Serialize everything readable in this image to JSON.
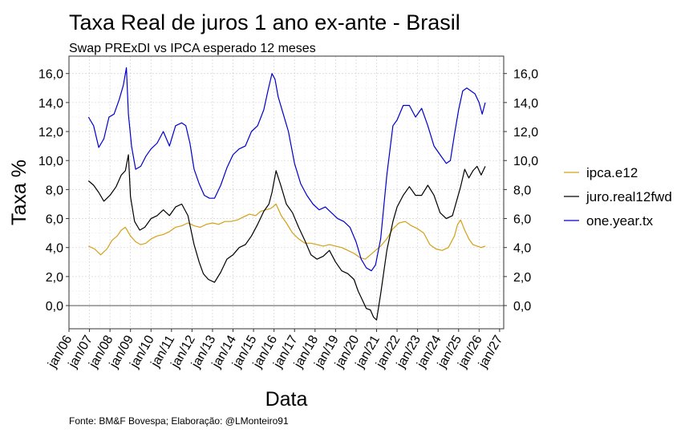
{
  "chart_data": {
    "type": "line",
    "title": "Taxa Real de juros 1 ano ex-ante - Brasil",
    "subtitle": "Swap PRExDI vs IPCA esperado 12 meses",
    "xlabel": "Data",
    "ylabel": "Taxa %",
    "caption": "Fonte: BM&F Bovespa; Elaboração: @LMonteiro91",
    "ylim": [
      -1.6,
      17.2
    ],
    "xlim": [
      2006.0,
      2027.2
    ],
    "y_ticks": [
      0,
      2,
      4,
      6,
      8,
      10,
      12,
      14,
      16
    ],
    "y_tick_labels": [
      "0,0",
      "2,0",
      "4,0",
      "6,0",
      "8,0",
      "10,0",
      "12,0",
      "14,0",
      "16,0"
    ],
    "x_ticks": [
      2006,
      2007,
      2008,
      2009,
      2010,
      2011,
      2012,
      2013,
      2014,
      2015,
      2016,
      2017,
      2018,
      2019,
      2020,
      2021,
      2022,
      2023,
      2024,
      2025,
      2026,
      2027
    ],
    "x_tick_labels": [
      "jan/06",
      "jan/07",
      "jan/08",
      "jan/09",
      "jan/10",
      "jan/11",
      "jan/12",
      "jan/13",
      "jan/14",
      "jan/15",
      "jan/16",
      "jan/17",
      "jan/18",
      "jan/19",
      "jan/20",
      "jan/21",
      "jan/22",
      "jan/23",
      "jan/24",
      "jan/25",
      "jan/26",
      "jan/27"
    ],
    "grid": true,
    "secondary_y_axis": true,
    "legend_position": "right",
    "series": [
      {
        "name": "ipca.e12",
        "color": "#D4A017",
        "x": [
          2006.95,
          2007.25,
          2007.55,
          2007.85,
          2008.1,
          2008.35,
          2008.55,
          2008.75,
          2009.0,
          2009.25,
          2009.5,
          2009.75,
          2010.0,
          2010.3,
          2010.6,
          2010.9,
          2011.2,
          2011.5,
          2011.8,
          2012.1,
          2012.4,
          2012.7,
          2013.0,
          2013.3,
          2013.6,
          2013.9,
          2014.2,
          2014.5,
          2014.8,
          2015.1,
          2015.35,
          2015.6,
          2015.85,
          2016.1,
          2016.35,
          2016.6,
          2016.9,
          2017.2,
          2017.5,
          2017.8,
          2018.1,
          2018.4,
          2018.7,
          2019.0,
          2019.3,
          2019.6,
          2019.9,
          2020.2,
          2020.45,
          2020.7,
          2020.95,
          2021.2,
          2021.5,
          2021.8,
          2022.1,
          2022.4,
          2022.7,
          2023.0,
          2023.3,
          2023.6,
          2023.9,
          2024.2,
          2024.5,
          2024.8,
          2024.95,
          2025.1,
          2025.3,
          2025.5,
          2025.7,
          2025.9,
          2026.1,
          2026.3
        ],
        "values": [
          4.1,
          3.9,
          3.5,
          3.9,
          4.5,
          4.8,
          5.2,
          5.4,
          4.8,
          4.4,
          4.2,
          4.3,
          4.6,
          4.8,
          4.9,
          5.1,
          5.4,
          5.5,
          5.7,
          5.5,
          5.4,
          5.6,
          5.7,
          5.6,
          5.8,
          5.8,
          5.9,
          6.1,
          6.3,
          6.2,
          6.5,
          6.6,
          6.7,
          7.0,
          6.2,
          5.7,
          5.0,
          4.6,
          4.3,
          4.3,
          4.2,
          4.1,
          4.2,
          4.1,
          4.0,
          3.8,
          3.6,
          3.3,
          3.2,
          3.5,
          3.8,
          4.1,
          4.6,
          5.3,
          5.7,
          5.8,
          5.5,
          5.3,
          5.0,
          4.2,
          3.9,
          3.8,
          4.0,
          4.8,
          5.6,
          5.9,
          5.2,
          4.6,
          4.2,
          4.1,
          4.0,
          4.1
        ]
      },
      {
        "name": "juro.real12fwd",
        "color": "#000000",
        "x": [
          2006.95,
          2007.2,
          2007.45,
          2007.7,
          2008.0,
          2008.3,
          2008.55,
          2008.75,
          2008.9,
          2009.0,
          2009.2,
          2009.45,
          2009.7,
          2010.0,
          2010.3,
          2010.6,
          2010.9,
          2011.2,
          2011.5,
          2011.8,
          2012.1,
          2012.35,
          2012.55,
          2012.8,
          2013.1,
          2013.4,
          2013.7,
          2014.0,
          2014.3,
          2014.6,
          2014.9,
          2015.2,
          2015.5,
          2015.75,
          2015.9,
          2016.1,
          2016.35,
          2016.6,
          2016.9,
          2017.2,
          2017.5,
          2017.8,
          2018.1,
          2018.4,
          2018.7,
          2019.0,
          2019.3,
          2019.6,
          2019.9,
          2020.1,
          2020.3,
          2020.5,
          2020.7,
          2020.85,
          2021.0,
          2021.2,
          2021.5,
          2021.8,
          2022.0,
          2022.3,
          2022.6,
          2022.9,
          2023.2,
          2023.5,
          2023.8,
          2024.1,
          2024.4,
          2024.7,
          2024.9,
          2025.1,
          2025.3,
          2025.5,
          2025.7,
          2025.9,
          2026.1,
          2026.3
        ],
        "values": [
          8.6,
          8.3,
          7.8,
          7.2,
          7.6,
          8.2,
          9.0,
          9.3,
          10.4,
          7.5,
          5.8,
          5.2,
          5.4,
          6.0,
          6.2,
          6.6,
          6.2,
          6.8,
          7.0,
          6.2,
          4.2,
          3.0,
          2.2,
          1.8,
          1.6,
          2.3,
          3.2,
          3.5,
          4.0,
          4.2,
          4.8,
          5.6,
          6.5,
          7.0,
          7.8,
          9.3,
          8.2,
          7.0,
          6.4,
          5.4,
          4.5,
          3.5,
          3.2,
          3.4,
          3.8,
          3.0,
          2.4,
          2.2,
          1.8,
          1.0,
          0.4,
          -0.2,
          -0.3,
          -0.8,
          -1.0,
          0.8,
          3.8,
          5.8,
          6.8,
          7.6,
          8.2,
          7.6,
          7.6,
          8.3,
          7.6,
          6.4,
          6.0,
          6.2,
          7.2,
          8.2,
          9.4,
          8.8,
          9.3,
          9.6,
          9.0,
          9.6
        ]
      },
      {
        "name": "one.year.tx",
        "color": "#0000CC",
        "x": [
          2006.95,
          2007.2,
          2007.45,
          2007.7,
          2007.95,
          2008.2,
          2008.45,
          2008.65,
          2008.8,
          2008.9,
          2009.05,
          2009.25,
          2009.5,
          2009.75,
          2010.0,
          2010.3,
          2010.6,
          2010.9,
          2011.2,
          2011.5,
          2011.7,
          2011.9,
          2012.1,
          2012.35,
          2012.6,
          2012.85,
          2013.1,
          2013.4,
          2013.7,
          2014.0,
          2014.3,
          2014.6,
          2014.9,
          2015.2,
          2015.5,
          2015.7,
          2015.9,
          2016.05,
          2016.2,
          2016.45,
          2016.7,
          2017.0,
          2017.3,
          2017.6,
          2017.9,
          2018.2,
          2018.5,
          2018.8,
          2019.1,
          2019.4,
          2019.7,
          2020.0,
          2020.25,
          2020.5,
          2020.75,
          2020.95,
          2021.2,
          2021.5,
          2021.8,
          2022.0,
          2022.3,
          2022.6,
          2022.9,
          2023.2,
          2023.5,
          2023.8,
          2024.1,
          2024.4,
          2024.6,
          2024.8,
          2025.0,
          2025.2,
          2025.4,
          2025.6,
          2025.8,
          2026.0,
          2026.15,
          2026.3
        ],
        "values": [
          13.0,
          12.4,
          10.9,
          11.5,
          13.0,
          13.2,
          14.2,
          15.2,
          16.4,
          13.2,
          11.0,
          9.4,
          9.6,
          10.3,
          10.8,
          11.2,
          12.0,
          11.0,
          12.4,
          12.6,
          12.4,
          11.2,
          9.4,
          8.4,
          7.6,
          7.4,
          7.4,
          8.3,
          9.5,
          10.4,
          10.8,
          11.0,
          12.0,
          12.4,
          13.5,
          14.8,
          16.0,
          15.6,
          14.4,
          13.2,
          12.0,
          9.8,
          8.4,
          7.6,
          7.0,
          6.6,
          6.8,
          6.4,
          6.0,
          5.8,
          5.4,
          4.4,
          3.2,
          2.6,
          2.4,
          2.8,
          4.6,
          9.0,
          12.4,
          12.8,
          13.8,
          13.8,
          13.0,
          13.6,
          12.4,
          11.0,
          10.4,
          9.8,
          10.0,
          11.8,
          13.5,
          14.8,
          15.0,
          14.8,
          14.6,
          14.0,
          13.2,
          14.0
        ]
      }
    ]
  }
}
